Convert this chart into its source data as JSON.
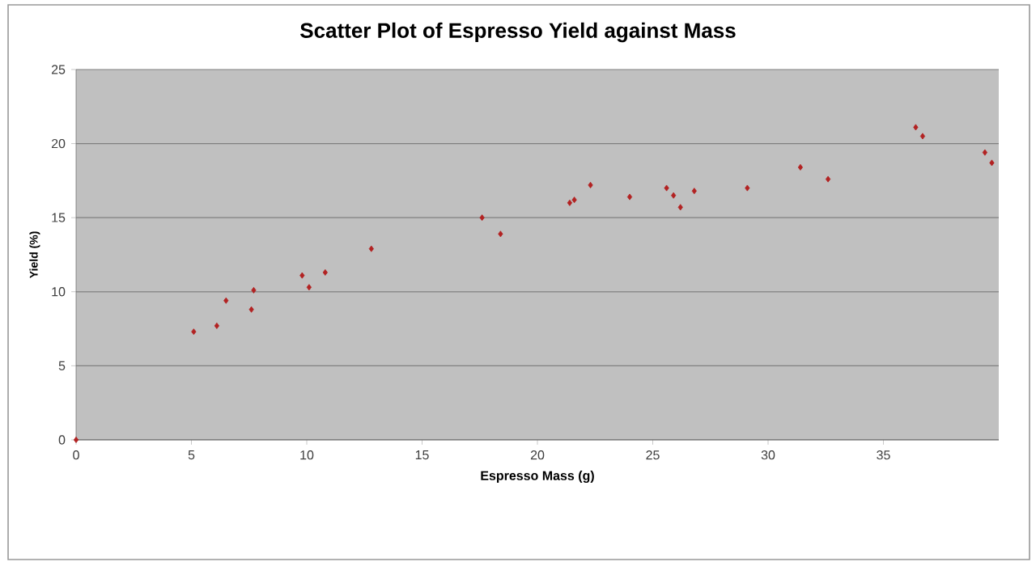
{
  "chart_data": {
    "type": "scatter",
    "title": "Scatter Plot of Espresso Yield against Mass",
    "xlabel": "Espresso Mass (g)",
    "ylabel": "Yield (%)",
    "xlim": [
      0,
      40
    ],
    "ylim": [
      0,
      25
    ],
    "xticks": [
      0,
      5,
      10,
      15,
      20,
      25,
      30,
      35
    ],
    "yticks": [
      0,
      5,
      10,
      15,
      20,
      25
    ],
    "grid": "y",
    "marker": "diamond",
    "legend": false,
    "series": [
      {
        "color": "#b22222",
        "x": [
          0,
          5.1,
          6.1,
          6.5,
          7.6,
          7.7,
          9.8,
          10.1,
          10.8,
          12.8,
          17.6,
          18.4,
          21.4,
          21.6,
          22.3,
          24.0,
          25.6,
          25.9,
          26.2,
          26.8,
          29.1,
          31.4,
          32.6,
          36.4,
          36.7,
          39.4,
          39.7
        ],
        "values": [
          0,
          7.3,
          7.7,
          9.4,
          8.8,
          10.1,
          11.1,
          10.3,
          11.3,
          12.9,
          15.0,
          13.9,
          16.0,
          16.2,
          17.2,
          16.4,
          17.0,
          16.5,
          15.7,
          16.8,
          17.0,
          18.4,
          17.6,
          21.1,
          20.5,
          19.4,
          18.7
        ]
      }
    ]
  }
}
